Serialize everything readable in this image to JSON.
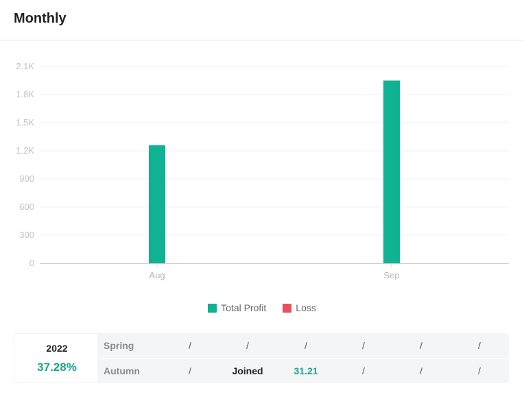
{
  "header": {
    "title": "Monthly"
  },
  "colors": {
    "profit": "#0fb292",
    "loss": "#e8505b",
    "green_text": "#19a585"
  },
  "legend": [
    {
      "label": "Total Profit",
      "color": "#0fb292"
    },
    {
      "label": "Loss",
      "color": "#e8505b"
    }
  ],
  "chart_data": {
    "type": "bar",
    "categories": [
      "Aug",
      "Sep"
    ],
    "series": [
      {
        "name": "Total Profit",
        "values": [
          1260,
          1950
        ]
      },
      {
        "name": "Loss",
        "values": [
          0,
          0
        ]
      }
    ],
    "ylim": [
      0,
      2100
    ],
    "yticks": [
      "0",
      "300",
      "600",
      "900",
      "1.2K",
      "1.5K",
      "1.8K",
      "2.1K"
    ],
    "grid": true,
    "legend_position": "bottom"
  },
  "stats": {
    "year": "2022",
    "percent": "37.28%",
    "rows": [
      {
        "season": "Spring",
        "cells": [
          "/",
          "/",
          "/",
          "/",
          "/",
          "/"
        ]
      },
      {
        "season": "Autumn",
        "cells": [
          "/",
          "Joined",
          "31.21",
          "/",
          "/",
          "/"
        ]
      }
    ]
  }
}
